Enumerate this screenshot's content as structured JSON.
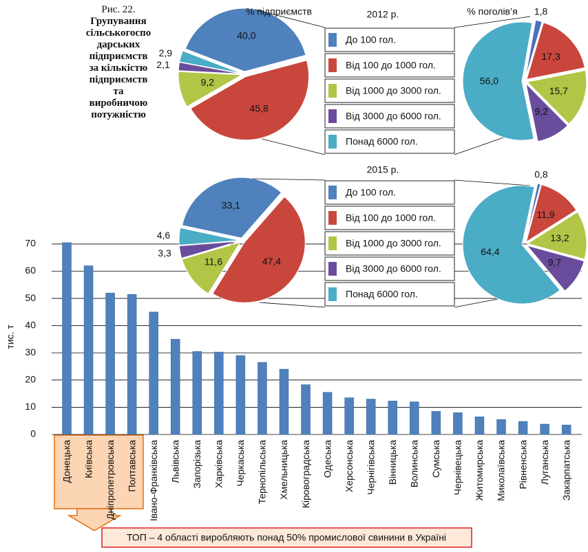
{
  "figure": {
    "label": "Рис. 22.",
    "title": "Групування сільськогосподарських підприємств за кількістю підприємств та виробничою потужністю"
  },
  "chart_data": [
    {
      "type": "bar",
      "categories": [
        "Донецька",
        "Київська",
        "Дніпропетровська",
        "Полтавська",
        "Івано-Франківська",
        "Львівська",
        "Запорізька",
        "Харківська",
        "Черкаська",
        "Тернопільська",
        "Хмельницька",
        "Кіровоградська",
        "Одеська",
        "Херсонська",
        "Чернігівська",
        "Вінницька",
        "Волинська",
        "Сумська",
        "Чернівецька",
        "Житомирська",
        "Миколаївська",
        "Рівненська",
        "Луганська",
        "Закарпатська"
      ],
      "values": [
        70.5,
        62,
        52,
        51.5,
        45,
        35,
        30.5,
        30.3,
        29,
        26.5,
        24,
        18.3,
        15.5,
        13.5,
        13,
        12.3,
        12,
        8.5,
        8,
        6.5,
        5.5,
        4.8,
        3.8,
        3.5
      ],
      "color": "#4f81bd",
      "ylabel": "тис. т",
      "ylim": [
        0,
        72
      ],
      "yticks": [
        0,
        10,
        20,
        30,
        40,
        50,
        60,
        70
      ],
      "grid": true,
      "annotation": "ТОП – 4 області виробляють понад 50% промислової свинини в Україні"
    },
    {
      "type": "pie",
      "title": "2012 р.",
      "label": "% підприємств",
      "categories": [
        "До  100 гол.",
        "Від 100 до 1000 гол.",
        "Від 1000 до 3000 гол.",
        "Від 3000 до 6000 гол.",
        "Понад 6000 гол."
      ],
      "colors": [
        "#4f81bd",
        "#c9463d",
        "#b3c546",
        "#6a4c9c",
        "#4bacc6"
      ],
      "values": [
        40.0,
        45.8,
        9.2,
        2.1,
        2.9
      ],
      "value_labels": [
        "40,0",
        "45,8",
        "9,2",
        "2,1",
        "2,9"
      ]
    },
    {
      "type": "pie",
      "label": "% поголів’я",
      "colors": [
        "#4f6fbd",
        "#c9463d",
        "#b3c546",
        "#6a4c9c",
        "#4bacc6"
      ],
      "values": [
        1.8,
        17.3,
        15.7,
        9.2,
        56.0
      ],
      "value_labels": [
        "1,8",
        "17,3",
        "15,7",
        "9,2",
        "56,0"
      ]
    },
    {
      "type": "pie",
      "title": "2015 р.",
      "categories": [
        "До  100 гол.",
        "Від 100 до 1000 гол.",
        "Від 1000 до 3000 гол.",
        "Від 3000 до 6000 гол.",
        "Понад 6000 гол."
      ],
      "colors": [
        "#4f81bd",
        "#c9463d",
        "#b3c546",
        "#6a4c9c",
        "#4bacc6"
      ],
      "values": [
        33.1,
        47.4,
        11.6,
        3.3,
        4.6
      ],
      "value_labels": [
        "33,1",
        "47,4",
        "11,6",
        "3,3",
        "4,6"
      ]
    },
    {
      "type": "pie",
      "colors": [
        "#4f6fbd",
        "#c9463d",
        "#b3c546",
        "#6a4c9c",
        "#4bacc6"
      ],
      "values": [
        0.8,
        11.9,
        13.2,
        9.7,
        64.4
      ],
      "value_labels": [
        "0,8",
        "11,9",
        "13,2",
        "9,7",
        "64,4"
      ]
    }
  ]
}
